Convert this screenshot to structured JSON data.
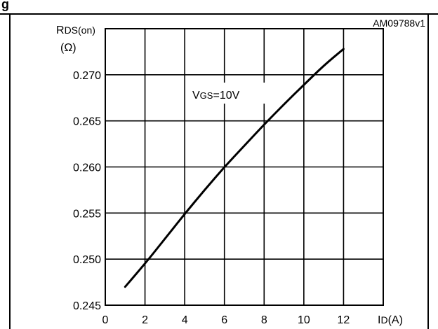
{
  "header_fragment": "g",
  "chart_data": {
    "type": "line",
    "code_label": "AM09788v1",
    "ylabel_main": "R",
    "ylabel_sub": "DS(on)",
    "ylabel_unit": "(Ω)",
    "xlabel_main": "I",
    "xlabel_sub": "D",
    "xlabel_unit": "(A)",
    "annotation_main": "V",
    "annotation_sub": "GS",
    "annotation_rest": "=10V",
    "xlim": [
      0,
      14
    ],
    "ylim": [
      0.245,
      0.275
    ],
    "x_ticks": [
      0,
      2,
      4,
      6,
      8,
      10,
      12
    ],
    "x_tick_labels": [
      "0",
      "2",
      "4",
      "6",
      "8",
      "10",
      "12"
    ],
    "y_ticks": [
      0.245,
      0.25,
      0.255,
      0.26,
      0.265,
      0.27
    ],
    "y_tick_labels": [
      "0.245",
      "0.250",
      "0.255",
      "0.260",
      "0.265",
      "0.270"
    ],
    "grid": true,
    "series": [
      {
        "x": [
          1,
          2,
          3,
          4,
          5,
          6,
          7,
          8,
          9,
          10,
          11,
          12
        ],
        "y": [
          0.247,
          0.2495,
          0.2522,
          0.2549,
          0.2575,
          0.26,
          0.2623,
          0.2646,
          0.2668,
          0.2689,
          0.271,
          0.2728
        ]
      }
    ]
  }
}
